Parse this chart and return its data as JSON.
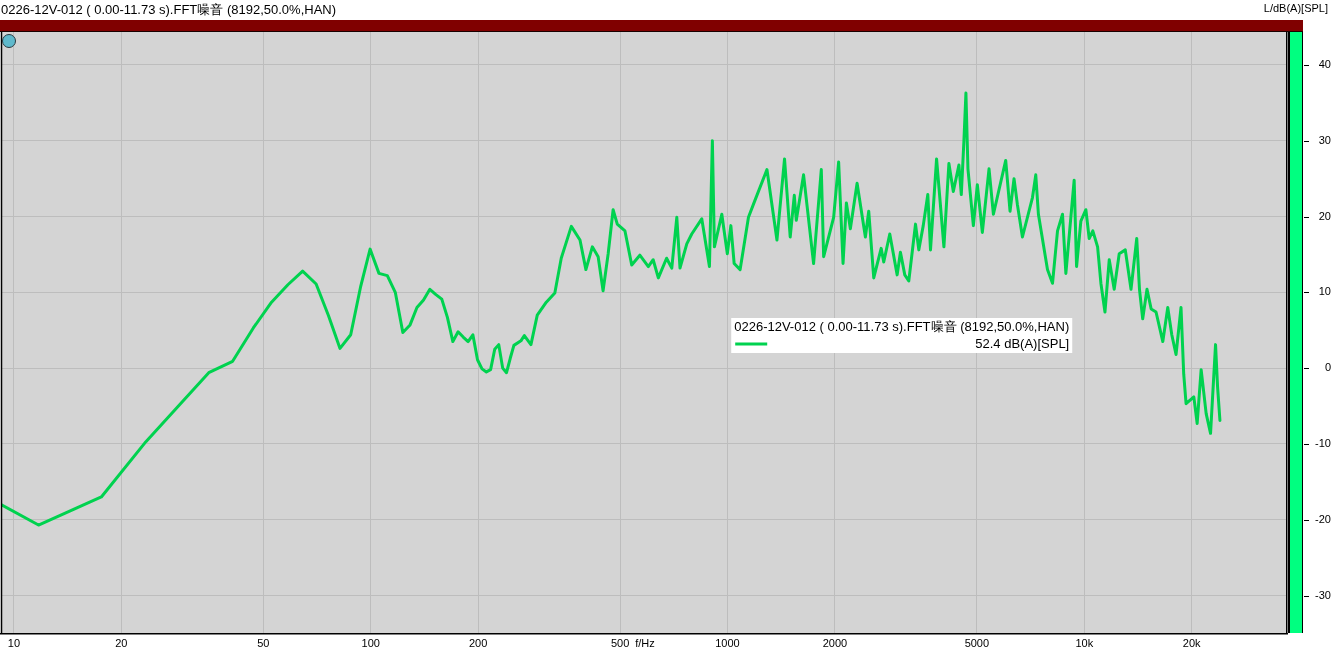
{
  "chart_data": {
    "type": "line",
    "title": "0226-12V-012 ( 0.00-11.73 s).FFT噪音 (8192,50.0%,HAN)",
    "xlabel": "f/Hz",
    "ylabel": "L/dB(A)[SPL]",
    "annotations": [
      "52.4 dB(A)[SPL]"
    ],
    "x": [
      9.2,
      11.72,
      17.58,
      23.44,
      29.3,
      35.16,
      41.02,
      46.88,
      52.73,
      58.59,
      64.45,
      70.31,
      76.17,
      82.03,
      87.89,
      93.75,
      99.61,
      105.47,
      111.33,
      117.19,
      123.05,
      128.91,
      134.77,
      140.63,
      146.48,
      152.34,
      158.2,
      164.06,
      169.92,
      175.78,
      181.64,
      187.5,
      193.36,
      199.22,
      205.08,
      210.94,
      216.8,
      222.66,
      228.52,
      234.38,
      240.23,
      246.09,
      251.95,
      263.67,
      269.53,
      281.25,
      292.97,
      310.55,
      328.13,
      342,
      365,
      386,
      401,
      418,
      434,
      448,
      463,
      478,
      491,
      516,
      539,
      568,
      600,
      619,
      640,
      675,
      698,
      721,
      736,
      769,
      794,
      847,
      890,
      907,
      919,
      964,
      999,
      1022,
      1044,
      1085,
      1145,
      1182,
      1290,
      1376,
      1445,
      1499,
      1539,
      1559,
      1634,
      1743,
      1832,
      1860,
      1984,
      2049,
      2108,
      2154,
      2210,
      2308,
      2435,
      2488,
      2570,
      2696,
      2741,
      2850,
      2989,
      3053,
      3140,
      3222,
      3365,
      3437,
      3537,
      3643,
      3707,
      3855,
      4042,
      4174,
      4295,
      4453,
      4522,
      4599,
      4659,
      4720,
      4888,
      5015,
      5180,
      5408,
      5563,
      6023,
      6193,
      6355,
      6494,
      6709,
      7158,
      7312,
      7438,
      7886,
      8147,
      8414,
      8690,
      8880,
      9368,
      9515,
      9782,
      10104,
      10323,
      10567,
      10898,
      11132,
      11428,
      11749,
      12130,
      12531,
      13030,
      13520,
      14030,
      14280,
      14580,
      14990,
      15400,
      15890,
      16600,
      17140,
      17590,
      18080,
      18670,
      19000,
      19290,
      20280,
      20720,
      21260,
      21960,
      22590,
      23330,
      23640,
      24000
    ],
    "series": [
      {
        "name": "0226-12V-012 ( 0.00-11.73 s).FFT噪音 (8192,50.0%,HAN)",
        "color": "#00d24f",
        "values": [
          -18.0,
          -20.7,
          -17.0,
          -9.7,
          -4.7,
          -0.6,
          0.9,
          5.3,
          8.7,
          11.0,
          12.8,
          11.1,
          6.9,
          2.6,
          4.4,
          10.8,
          15.7,
          12.5,
          12.2,
          10.0,
          4.7,
          5.7,
          8.0,
          9.0,
          10.4,
          9.7,
          9.1,
          6.7,
          3.5,
          4.8,
          4.1,
          3.5,
          4.4,
          1.1,
          -0.1,
          -0.5,
          -0.2,
          2.5,
          3.1,
          0.0,
          -0.6,
          1.3,
          3.0,
          3.6,
          4.3,
          3.1,
          7.0,
          8.7,
          9.9,
          14.5,
          18.7,
          16.9,
          13.0,
          16.0,
          14.7,
          10.2,
          15.1,
          20.9,
          19.0,
          18.1,
          13.6,
          14.9,
          13.4,
          14.3,
          11.9,
          14.5,
          13.2,
          19.9,
          13.2,
          16.4,
          17.7,
          19.7,
          13.4,
          30.0,
          16.0,
          20.3,
          15.1,
          18.8,
          13.8,
          13.0,
          19.9,
          21.6,
          26.2,
          16.9,
          27.6,
          17.3,
          22.8,
          19.5,
          25.5,
          13.8,
          26.2,
          14.7,
          19.9,
          27.2,
          13.8,
          21.8,
          18.4,
          24.4,
          17.3,
          20.7,
          11.9,
          15.8,
          14.0,
          17.7,
          12.3,
          15.3,
          12.3,
          11.5,
          19.0,
          15.6,
          18.8,
          22.9,
          15.6,
          27.6,
          16.0,
          27.0,
          23.3,
          26.8,
          22.9,
          30.0,
          36.3,
          26.3,
          18.8,
          24.2,
          17.9,
          26.3,
          20.3,
          27.4,
          20.7,
          25.0,
          21.6,
          17.3,
          22.5,
          25.5,
          20.3,
          13.0,
          11.2,
          18.1,
          20.3,
          12.5,
          24.8,
          13.4,
          19.4,
          20.9,
          17.1,
          18.1,
          16.0,
          11.2,
          7.4,
          14.3,
          10.4,
          15.1,
          15.6,
          10.4,
          17.1,
          10.4,
          6.5,
          10.4,
          7.8,
          7.4,
          3.5,
          8.0,
          4.4,
          1.8,
          8.0,
          -0.8,
          -4.7,
          -3.8,
          -7.3,
          -0.2,
          -6.0,
          -8.6,
          3.1,
          -2.5,
          -6.9
        ]
      }
    ],
    "xlim": [
      9.2,
      37000
    ],
    "ylim": [
      -35,
      44.4
    ],
    "xticks": [
      10,
      20,
      50,
      100,
      200,
      500,
      1000,
      2000,
      5000,
      {
        "value": 10000,
        "label": "10k"
      },
      {
        "value": 20000,
        "label": "20k"
      }
    ],
    "yticks": [
      -30,
      -20,
      -10,
      0,
      10,
      20,
      30,
      40
    ],
    "log": "x",
    "grid": true,
    "legend": "right"
  }
}
